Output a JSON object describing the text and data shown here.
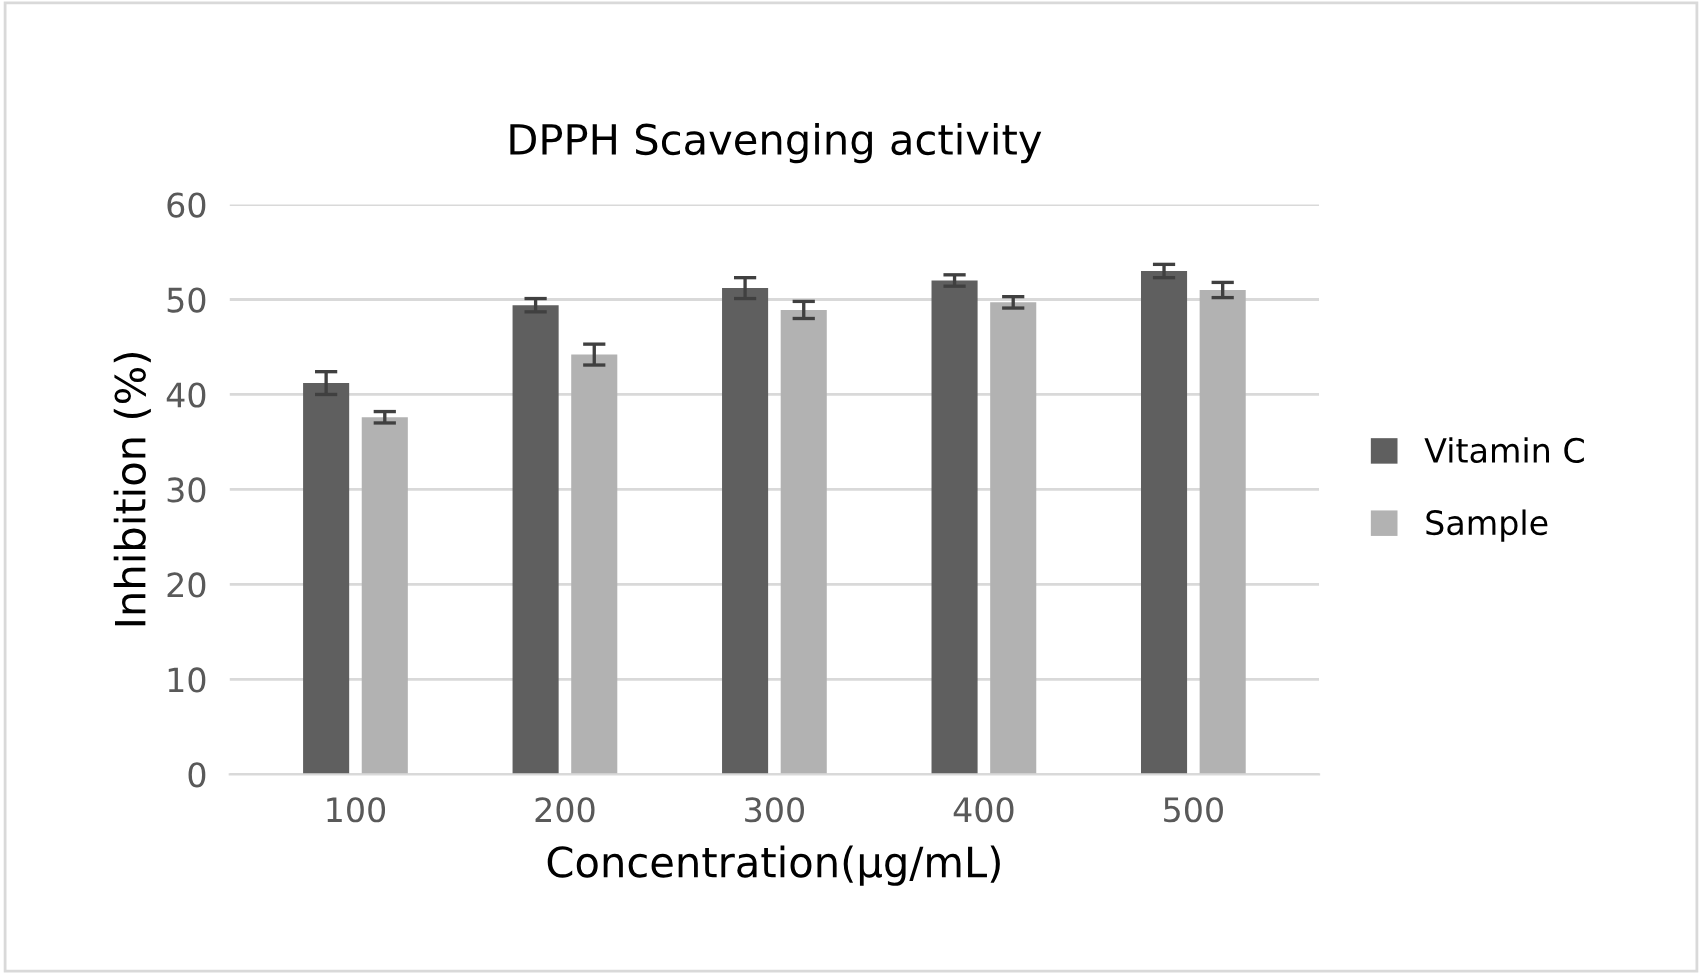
{
  "chart_data": {
    "type": "bar",
    "title": "DPPH Scavenging activity",
    "xlabel": "Concentration(μg/mL)",
    "ylabel": "Inhibition (%)",
    "categories": [
      "100",
      "200",
      "300",
      "400",
      "500"
    ],
    "series": [
      {
        "name": "Vitamin C",
        "color": "#5f5f5f",
        "values": [
          41.2,
          49.4,
          51.2,
          52.0,
          53.0
        ],
        "errors": [
          1.2,
          0.7,
          1.1,
          0.6,
          0.7
        ]
      },
      {
        "name": "Sample",
        "color": "#b2b2b2",
        "values": [
          37.6,
          44.2,
          48.9,
          49.7,
          51.0
        ],
        "errors": [
          0.6,
          1.1,
          0.9,
          0.6,
          0.8
        ]
      }
    ],
    "ylim": [
      0,
      60
    ],
    "yticks": [
      0,
      10,
      20,
      30,
      40,
      50,
      60
    ],
    "grid": "y",
    "legend": "right"
  }
}
